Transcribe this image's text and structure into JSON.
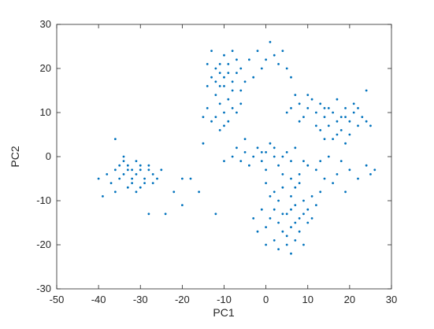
{
  "chart_data": {
    "type": "scatter",
    "xlabel": "PC1",
    "ylabel": "PC2",
    "color": "#0072bd",
    "xlim": [
      -50,
      30
    ],
    "xticks": [
      -50,
      -40,
      -30,
      -20,
      -10,
      0,
      10,
      20,
      30
    ],
    "ylim": [
      -30,
      30
    ],
    "yticks": [
      -30,
      -20,
      -10,
      0,
      10,
      20,
      30
    ],
    "x": [
      -31,
      -33,
      -29,
      -30,
      -32,
      -34,
      -28,
      -35,
      -27,
      -31,
      -30,
      -33,
      -36,
      -29,
      -32,
      -26,
      -37,
      -31,
      -34,
      -28,
      -38,
      -30,
      -32,
      -33,
      -35,
      -27,
      -40,
      -36,
      -25,
      -34,
      -39,
      -24,
      -28,
      -22,
      -20,
      -36,
      -10,
      -12,
      -8,
      -9,
      -11,
      -7,
      -13,
      -10,
      -6,
      -12,
      -8,
      -14,
      -9,
      -11,
      -7,
      -5,
      -10,
      -13,
      -8,
      -12,
      -9,
      -6,
      -4,
      -11,
      -14,
      -10,
      -12,
      -8,
      -11,
      -13,
      -9,
      -7,
      -14,
      -10,
      -6,
      -15,
      -11,
      0,
      -2,
      2,
      -1,
      3,
      1,
      -3,
      5,
      4,
      6,
      0,
      -3,
      2,
      -5,
      4,
      -1,
      1,
      -6,
      3,
      -2,
      5,
      -4,
      6,
      -8,
      0,
      7,
      -7,
      -10,
      2,
      -1,
      5,
      3,
      7,
      4,
      8,
      2,
      6,
      9,
      1,
      5,
      10,
      3,
      7,
      0,
      6,
      11,
      4,
      8,
      2,
      12,
      -1,
      5,
      9,
      3,
      13,
      6,
      -2,
      7,
      10,
      1,
      4,
      8,
      11,
      -3,
      6,
      8,
      10,
      6,
      12,
      9,
      2,
      0,
      4,
      7,
      14,
      20,
      22,
      18,
      24,
      16,
      19,
      25,
      15,
      17,
      13,
      10,
      8,
      12,
      6,
      11,
      9,
      13,
      7,
      5,
      14,
      10,
      8,
      17,
      15,
      19,
      16,
      18,
      20,
      14,
      21,
      17,
      22,
      16,
      19,
      23,
      15,
      18,
      20,
      13,
      24,
      21,
      17,
      25,
      14,
      19,
      12,
      22,
      -15,
      -18,
      -16,
      -12,
      0,
      9,
      -5,
      24,
      26,
      -20
    ],
    "values": [
      -4,
      -3,
      -5,
      -2,
      -6,
      -4,
      -3,
      -5,
      -4,
      -1,
      -7,
      -2,
      -3,
      -6,
      -5,
      -5,
      -6,
      -8,
      -1,
      -2,
      -4,
      -3,
      -3,
      -7,
      -2,
      -6,
      -5,
      -8,
      -3,
      0,
      -9,
      -13,
      -13,
      -8,
      -5,
      4,
      18,
      20,
      17,
      21,
      16,
      19,
      18,
      23,
      20,
      14,
      15,
      21,
      19,
      19,
      22,
      17,
      16,
      24,
      24,
      17,
      13,
      15,
      22,
      21,
      16,
      10,
      9,
      11,
      12,
      8,
      8,
      10,
      11,
      7,
      12,
      9,
      6,
      22,
      24,
      23,
      20,
      21,
      26,
      18,
      20,
      24,
      18,
      1,
      0,
      2,
      1,
      0,
      -1,
      3,
      -1,
      -2,
      2,
      1,
      -2,
      -1,
      0,
      -3,
      2,
      2,
      -1,
      0,
      1,
      -13,
      -15,
      -11,
      -17,
      -14,
      -12,
      -16,
      -10,
      -14,
      -18,
      -12,
      -10,
      -15,
      -16,
      -9,
      -9,
      -13,
      -17,
      -19,
      -11,
      -12,
      -20,
      -13,
      -21,
      -8,
      -12,
      -17,
      -19,
      -15,
      -9,
      -7,
      -6,
      -14,
      -14,
      -22,
      -4,
      -2,
      -5,
      -3,
      -1,
      -8,
      -6,
      -4,
      -7,
      -5,
      -3,
      -5,
      -1,
      -2,
      -6,
      -8,
      -4,
      0,
      -4,
      -1,
      11,
      12,
      10,
      11,
      13,
      9,
      12,
      14,
      10,
      11,
      14,
      8,
      8,
      7,
      9,
      10,
      6,
      8,
      9,
      10,
      5,
      7,
      4,
      11,
      9,
      11,
      9,
      5,
      6,
      8,
      12,
      13,
      7,
      4,
      3,
      7,
      11,
      3,
      -5,
      -8,
      -13,
      -20,
      -20,
      4,
      15,
      -3,
      -11
    ]
  }
}
